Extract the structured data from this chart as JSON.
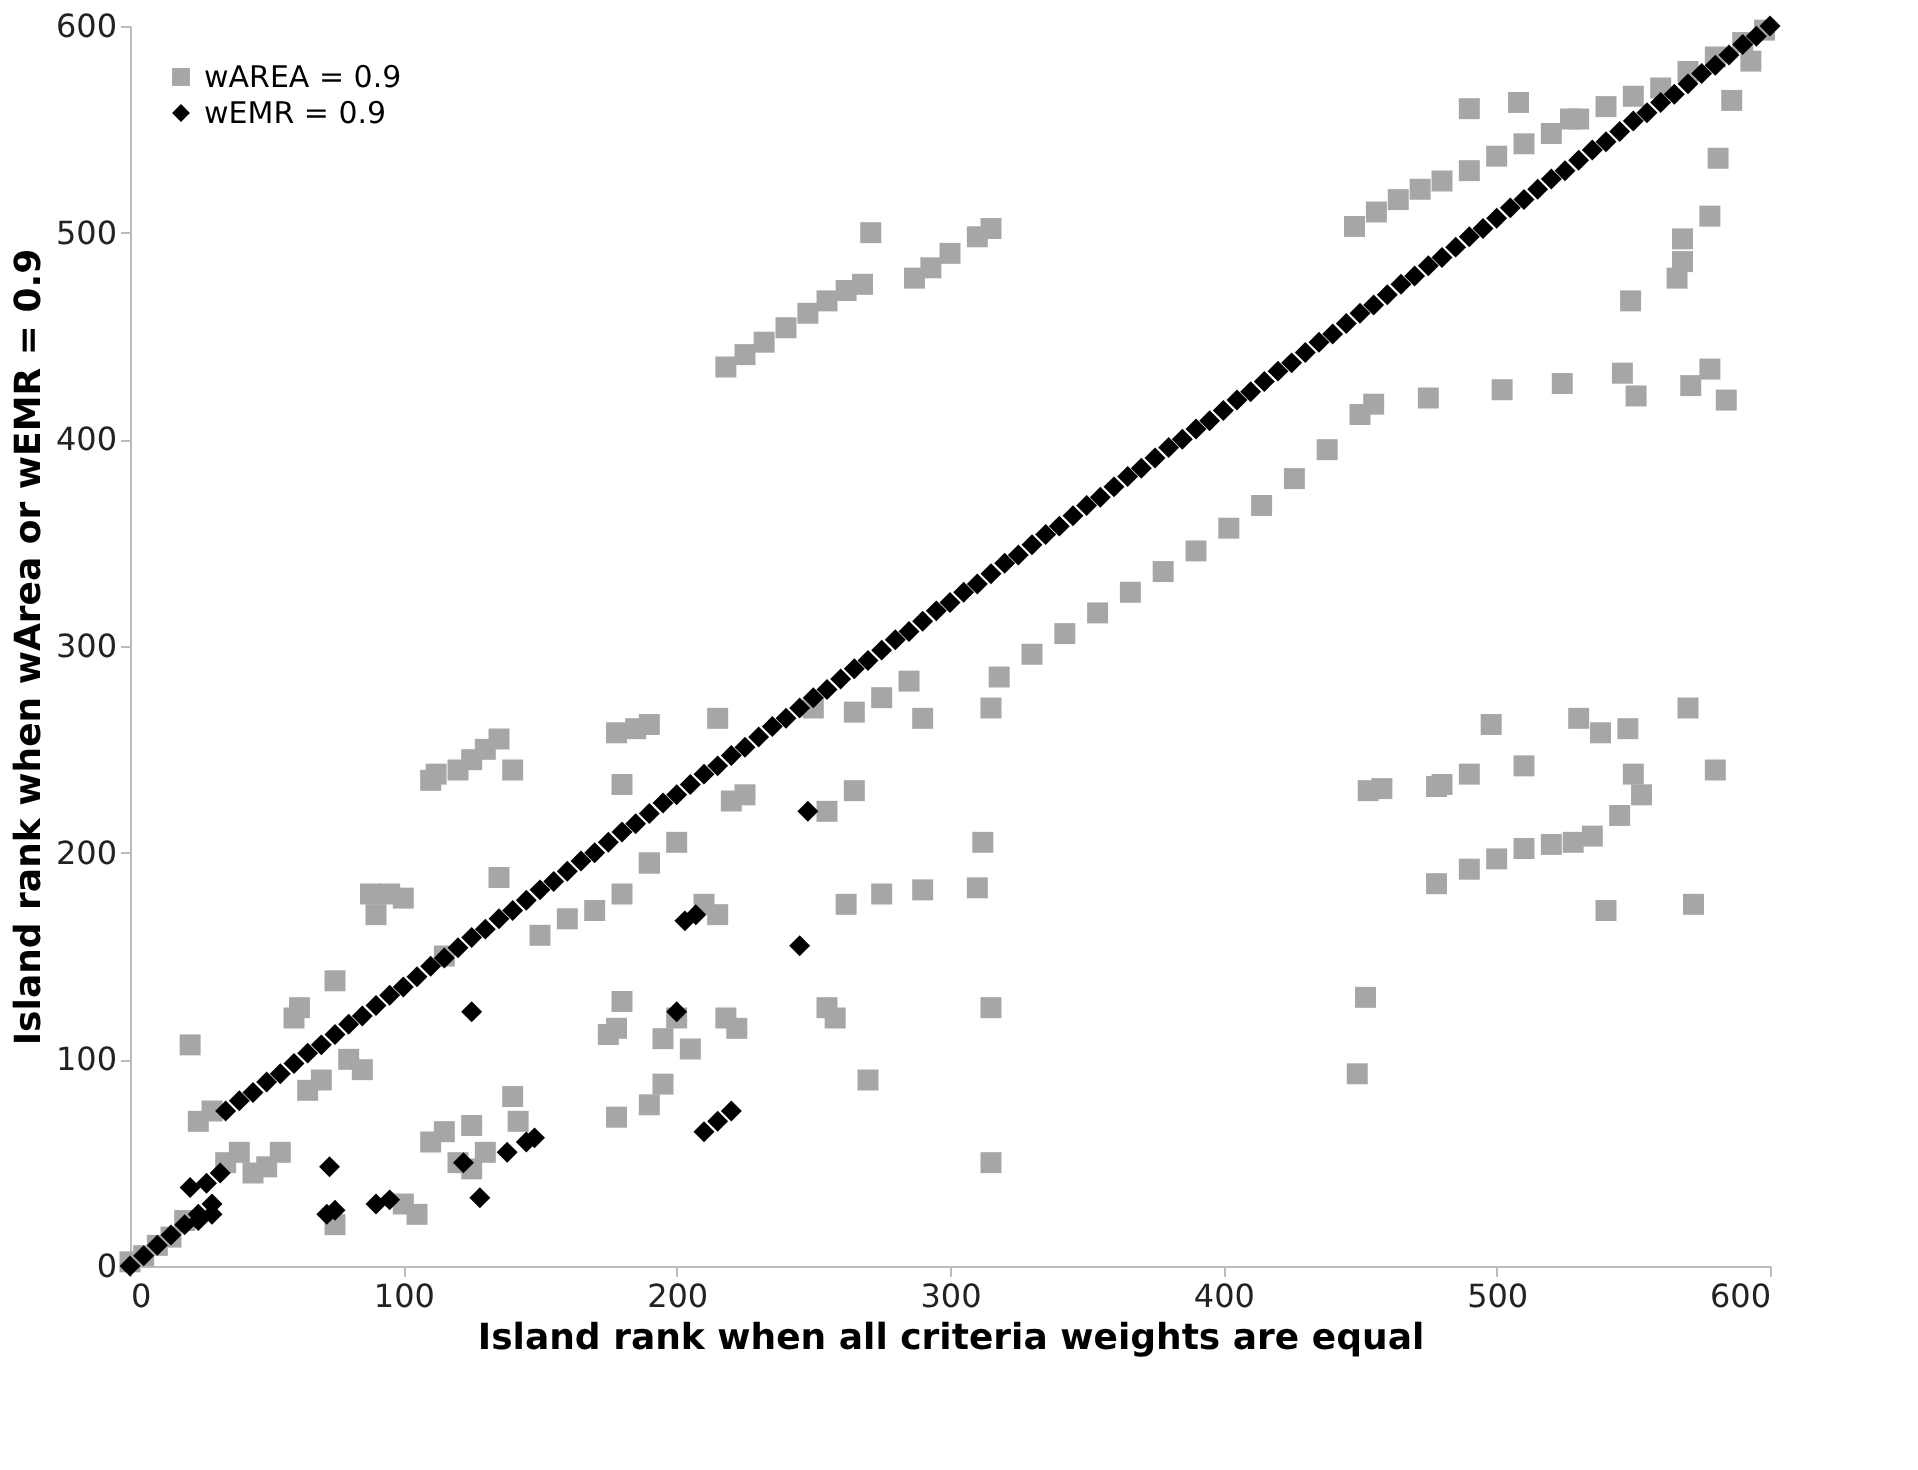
{
  "chart_data": {
    "type": "scatter",
    "xlabel": "Island rank when all criteria weights are equal",
    "ylabel": "Island rank when wArea or wEMR = 0.9",
    "xlim": [
      0,
      600
    ],
    "ylim": [
      0,
      600
    ],
    "xticks": [
      0,
      100,
      200,
      300,
      400,
      500,
      600
    ],
    "yticks": [
      0,
      100,
      200,
      300,
      400,
      500,
      600
    ],
    "grid": false,
    "legend": "top left",
    "series": [
      {
        "name": "wAREA = 0.9",
        "color": "#a6a6a6",
        "marker": "square",
        "x": [
          0,
          5,
          10,
          15,
          20,
          218,
          225,
          232,
          240,
          248,
          255,
          262,
          268,
          271,
          287,
          293,
          300,
          310,
          315,
          318,
          330,
          342,
          354,
          366,
          378,
          390,
          402,
          414,
          426,
          438,
          450,
          455,
          475,
          502,
          524,
          546,
          551,
          571,
          578,
          584,
          448,
          456,
          464,
          472,
          480,
          490,
          500,
          510,
          520,
          530,
          540,
          550,
          560,
          570,
          580,
          590,
          598,
          490,
          508,
          527,
          593,
          586,
          581,
          578,
          568,
          568,
          566,
          549,
          120,
          125,
          130,
          135,
          140,
          135,
          150,
          160,
          170,
          180,
          190,
          200,
          265,
          275,
          285,
          22,
          25,
          30,
          35,
          40,
          45,
          50,
          55,
          60,
          62,
          65,
          70,
          75,
          75,
          80,
          85,
          88,
          90,
          95,
          100,
          100,
          105,
          110,
          112,
          115,
          140,
          142,
          178,
          185,
          190,
          180,
          190,
          195,
          200,
          205,
          210,
          215,
          215,
          218,
          222,
          220,
          225,
          250,
          255,
          255,
          258,
          262,
          265,
          270,
          275,
          290,
          290,
          310,
          312,
          315,
          315,
          315,
          178,
          190,
          195,
          178,
          180,
          175,
          125,
          130,
          120,
          110,
          115,
          125,
          453,
          458,
          478,
          480,
          490,
          498,
          510,
          530,
          538,
          548,
          550,
          553,
          570,
          580,
          572,
          540,
          449,
          452,
          478,
          490,
          500,
          510,
          520,
          528,
          535,
          545
        ],
        "values": [
          2,
          5,
          10,
          14,
          22,
          435,
          441,
          447,
          454,
          461,
          467,
          472,
          475,
          500,
          478,
          483,
          490,
          498,
          502,
          285,
          296,
          306,
          316,
          326,
          336,
          346,
          357,
          368,
          381,
          395,
          412,
          417,
          420,
          424,
          427,
          432,
          421,
          426,
          434,
          419,
          503,
          510,
          516,
          521,
          525,
          530,
          537,
          543,
          548,
          555,
          561,
          566,
          570,
          578,
          585,
          592,
          598,
          560,
          563,
          555,
          583,
          564,
          536,
          508,
          497,
          486,
          478,
          467,
          240,
          245,
          250,
          255,
          240,
          188,
          160,
          168,
          172,
          180,
          195,
          205,
          268,
          275,
          283,
          107,
          70,
          75,
          50,
          55,
          45,
          48,
          55,
          120,
          125,
          85,
          90,
          138,
          20,
          100,
          95,
          180,
          170,
          180,
          178,
          30,
          25,
          235,
          238,
          150,
          82,
          70,
          258,
          260,
          262,
          233,
          195,
          110,
          120,
          105,
          175,
          265,
          170,
          120,
          115,
          225,
          228,
          270,
          220,
          125,
          120,
          175,
          230,
          90,
          180,
          182,
          265,
          183,
          205,
          125,
          50,
          270,
          72,
          78,
          88,
          115,
          128,
          112,
          47,
          55,
          50,
          60,
          65,
          68,
          230,
          231,
          232,
          233,
          238,
          262,
          242,
          265,
          258,
          260,
          238,
          228,
          270,
          240,
          175,
          172,
          93,
          130,
          185,
          192,
          197,
          202,
          204,
          205,
          208,
          218
        ]
      },
      {
        "name": "wEMR = 0.9",
        "color": "#000000",
        "marker": "diamond",
        "x": [
          0,
          5,
          10,
          15,
          20,
          25,
          30,
          35,
          40,
          45,
          50,
          55,
          60,
          65,
          70,
          75,
          80,
          85,
          90,
          95,
          100,
          105,
          110,
          115,
          120,
          125,
          130,
          135,
          140,
          145,
          150,
          155,
          160,
          165,
          170,
          175,
          180,
          185,
          190,
          195,
          200,
          205,
          210,
          215,
          220,
          225,
          230,
          235,
          240,
          245,
          250,
          255,
          260,
          265,
          270,
          275,
          280,
          285,
          290,
          295,
          300,
          305,
          310,
          315,
          320,
          325,
          330,
          335,
          340,
          345,
          350,
          355,
          360,
          365,
          370,
          375,
          380,
          385,
          390,
          395,
          400,
          405,
          410,
          415,
          420,
          425,
          430,
          435,
          440,
          445,
          450,
          455,
          460,
          465,
          470,
          475,
          480,
          485,
          490,
          495,
          500,
          505,
          510,
          515,
          520,
          525,
          530,
          535,
          540,
          545,
          550,
          555,
          560,
          565,
          570,
          575,
          580,
          585,
          590,
          595,
          600,
          22,
          28,
          33,
          25,
          30,
          73,
          72,
          75,
          90,
          95,
          122,
          128,
          125,
          138,
          145,
          148,
          200,
          203,
          207,
          210,
          215,
          220,
          245,
          248
        ],
        "values": [
          0,
          5,
          10,
          15,
          20,
          25,
          30,
          75,
          80,
          84,
          89,
          93,
          98,
          103,
          107,
          112,
          117,
          121,
          126,
          131,
          135,
          140,
          145,
          149,
          154,
          159,
          163,
          168,
          172,
          177,
          182,
          186,
          191,
          196,
          200,
          205,
          210,
          214,
          219,
          224,
          228,
          233,
          238,
          242,
          247,
          251,
          256,
          261,
          265,
          270,
          275,
          279,
          284,
          289,
          293,
          298,
          303,
          307,
          312,
          317,
          321,
          326,
          330,
          335,
          340,
          344,
          349,
          354,
          358,
          363,
          368,
          372,
          377,
          382,
          386,
          391,
          396,
          400,
          405,
          409,
          414,
          419,
          423,
          428,
          433,
          437,
          442,
          447,
          451,
          456,
          461,
          465,
          470,
          475,
          479,
          484,
          488,
          493,
          498,
          502,
          507,
          512,
          516,
          521,
          526,
          530,
          535,
          540,
          544,
          549,
          554,
          558,
          563,
          567,
          572,
          577,
          581,
          586,
          591,
          595,
          600,
          38,
          40,
          45,
          22,
          25,
          48,
          25,
          27,
          30,
          32,
          50,
          33,
          123,
          55,
          60,
          62,
          123,
          167,
          170,
          65,
          70,
          75,
          155,
          220
        ]
      }
    ]
  }
}
